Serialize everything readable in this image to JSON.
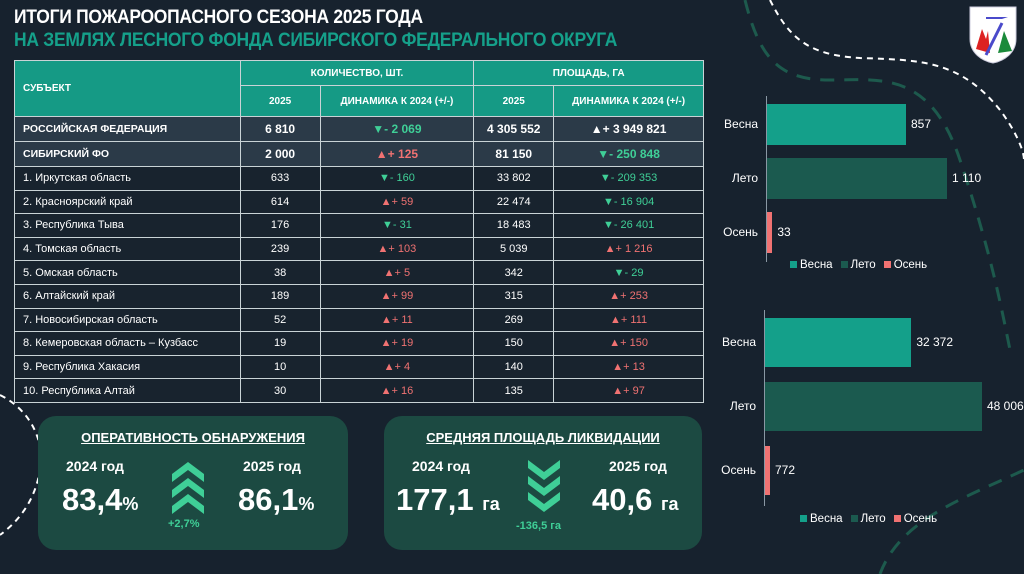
{
  "title": "ИТОГИ ПОЖАРООПАСНОГО СЕЗОНА 2025 ГОДА",
  "subtitle": "НА ЗЕМЛЯХ ЛЕСНОГО ФОНДА СИБИРСКОГО ФЕДЕРАЛЬНОГО ОКРУГА",
  "table": {
    "h_subject": "СУБЪЕКТ",
    "h_count": "КОЛИЧЕСТВО, ШТ.",
    "h_area": "ПЛОЩАДЬ, ГА",
    "h_2025": "2025",
    "h_dyn": "ДИНАМИКА К 2024 (+/-)",
    "rows": [
      {
        "name": "РОССИЙСКАЯ ФЕДЕРАЦИЯ",
        "c": "6 810",
        "cd": "▼- 2 069",
        "cdir": "dn",
        "a": "4 305 552",
        "ad": "▲+ 3 949 821",
        "adir": "wh"
      },
      {
        "name": "СИБИРСКИЙ ФО",
        "c": "2 000",
        "cd": "▲+ 125",
        "cdir": "up",
        "a": "81 150",
        "ad": "▼- 250 848",
        "adir": "dn"
      },
      {
        "name": "1. Иркутская область",
        "c": "633",
        "cd": "▼- 160",
        "cdir": "dn",
        "a": "33 802",
        "ad": "▼- 209 353",
        "adir": "dn"
      },
      {
        "name": "2. Красноярский край",
        "c": "614",
        "cd": "▲+ 59",
        "cdir": "up",
        "a": "22 474",
        "ad": "▼- 16 904",
        "adir": "dn"
      },
      {
        "name": "3. Республика Тыва",
        "c": "176",
        "cd": "▼- 31",
        "cdir": "dn",
        "a": "18 483",
        "ad": "▼- 26 401",
        "adir": "dn"
      },
      {
        "name": "4. Томская область",
        "c": "239",
        "cd": "▲+ 103",
        "cdir": "up",
        "a": "5 039",
        "ad": "▲+ 1 216",
        "adir": "up"
      },
      {
        "name": "5. Омская область",
        "c": "38",
        "cd": "▲+ 5",
        "cdir": "up",
        "a": "342",
        "ad": "▼- 29",
        "adir": "dn"
      },
      {
        "name": "6. Алтайский край",
        "c": "189",
        "cd": "▲+ 99",
        "cdir": "up",
        "a": "315",
        "ad": "▲+ 253",
        "adir": "up"
      },
      {
        "name": "7. Новосибирская область",
        "c": "52",
        "cd": "▲+ 11",
        "cdir": "up",
        "a": "269",
        "ad": "▲+ 111",
        "adir": "up"
      },
      {
        "name": "8. Кемеровская область – Кузбасс",
        "c": "19",
        "cd": "▲+ 19",
        "cdir": "up",
        "a": "150",
        "ad": "▲+ 150",
        "adir": "up"
      },
      {
        "name": "9. Республика Хакасия",
        "c": "10",
        "cd": "▲+ 4",
        "cdir": "up",
        "a": "140",
        "ad": "▲+ 13",
        "adir": "up"
      },
      {
        "name": "10. Республика Алтай",
        "c": "30",
        "cd": "▲+ 16",
        "cdir": "up",
        "a": "135",
        "ad": "▲+ 97",
        "adir": "up"
      }
    ]
  },
  "chart_data": [
    {
      "type": "bar",
      "orientation": "horizontal",
      "categories": [
        "Весна",
        "Лето",
        "Осень"
      ],
      "values": [
        857,
        1110,
        33
      ],
      "value_labels": [
        "857",
        "1 110",
        "33"
      ],
      "legend": [
        "Весна",
        "Лето",
        "Осень"
      ],
      "legend_position": "bottom",
      "colors": [
        "#14a08a",
        "#1b5a4f",
        "#f07272"
      ],
      "xlim": [
        0,
        1110
      ]
    },
    {
      "type": "bar",
      "orientation": "horizontal",
      "categories": [
        "Весна",
        "Лето",
        "Осень"
      ],
      "values": [
        32372,
        48006,
        772
      ],
      "value_labels": [
        "32 372",
        "48 006",
        "772"
      ],
      "legend": [
        "Весна",
        "Лето",
        "Осень"
      ],
      "legend_position": "bottom",
      "colors": [
        "#14a08a",
        "#1b5a4f",
        "#f07272"
      ],
      "xlim": [
        0,
        48006
      ]
    }
  ],
  "panel1": {
    "title": "ОПЕРАТИВНОСТЬ ОБНАРУЖЕНИЯ",
    "y1": "2024 год",
    "v1": "83,4",
    "y2": "2025 год",
    "v2": "86,1",
    "unit": "%",
    "delta": "+2,7%"
  },
  "panel2": {
    "title": "СРЕДНЯЯ ПЛОЩАДЬ ЛИКВИДАЦИИ",
    "y1": "2024 год",
    "v1": "177,1",
    "y2": "2025 год",
    "v2": "40,6",
    "unit": "га",
    "delta": "-136,5 га"
  }
}
